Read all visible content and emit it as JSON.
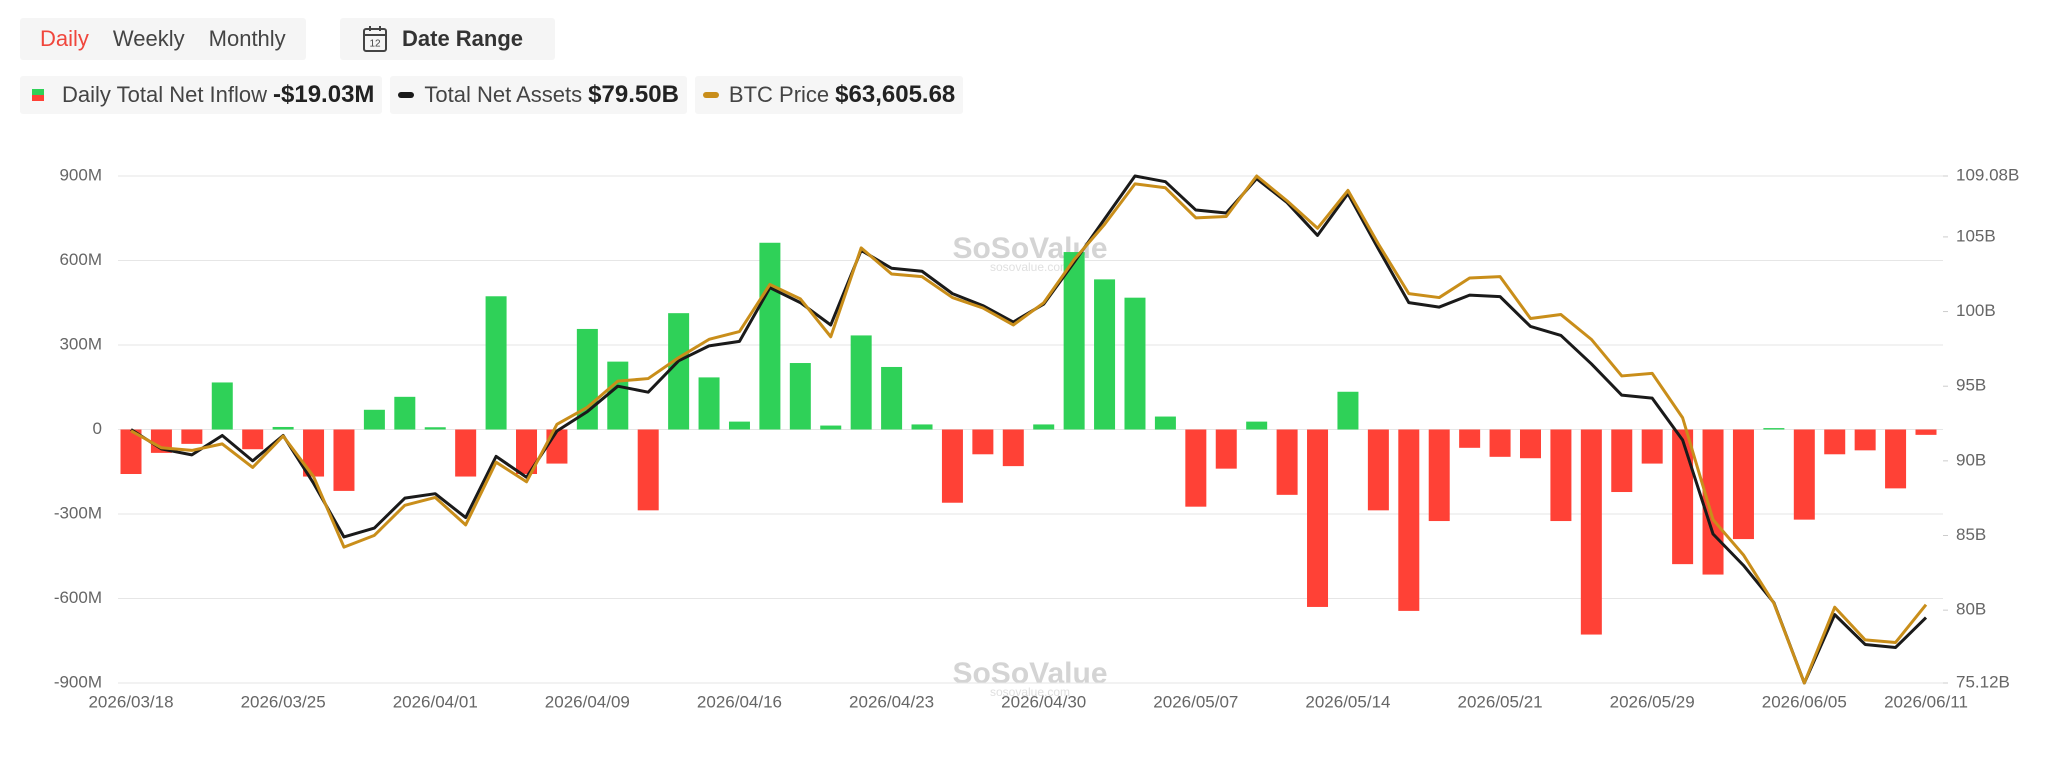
{
  "controls": {
    "tabs": [
      "Daily",
      "Weekly",
      "Monthly"
    ],
    "date_icon": "12",
    "date_range": "Date Range"
  },
  "chart_data": {
    "type": "bar",
    "watermark": "SoSoValue",
    "watermark_sub": "sosovalue.com",
    "categories": [
      "2026/03/18",
      null,
      null,
      null,
      null,
      "2026/03/25",
      null,
      null,
      null,
      null,
      "2026/04/01",
      null,
      null,
      null,
      null,
      "2026/04/09",
      null,
      null,
      null,
      null,
      "2026/04/16",
      null,
      null,
      null,
      null,
      "2026/04/23",
      null,
      null,
      null,
      null,
      "2026/04/30",
      null,
      null,
      null,
      null,
      "2026/05/07",
      null,
      null,
      null,
      null,
      "2026/05/14",
      null,
      null,
      null,
      null,
      "2026/05/21",
      null,
      null,
      null,
      null,
      "2026/05/29",
      null,
      null,
      null,
      null,
      "2026/06/05",
      null,
      null,
      null,
      "2026/06/11"
    ],
    "ylim": [
      -900,
      900
    ],
    "yticks": [
      {
        "value": 900,
        "label": "900M"
      },
      {
        "value": 600,
        "label": "600M"
      },
      {
        "value": 300,
        "label": "300M"
      },
      0,
      {
        "value": -300,
        "label": "-300M"
      },
      {
        "value": -600,
        "label": "-600M"
      },
      {
        "value": -900,
        "label": "-900M"
      }
    ],
    "y2lim": [
      75.12,
      109.08
    ],
    "y2ticks": [
      {
        "value": 109.08,
        "label": "109.08B"
      },
      {
        "value": 105,
        "label": "105B"
      },
      {
        "value": 100,
        "label": "100B"
      },
      {
        "value": 95,
        "label": "95B"
      },
      {
        "value": 90,
        "label": "90B"
      },
      {
        "value": 85,
        "label": "85B"
      },
      {
        "value": 80,
        "label": "80B"
      },
      {
        "value": 75.12,
        "label": "75.12B"
      }
    ],
    "grid": true,
    "series": [
      {
        "name": "Daily Total Net Inflow",
        "legend_value": "-$19.03M",
        "type": "bar",
        "axis": "y",
        "positive_color": "#2fd158",
        "negative_color": "#ff4136",
        "values": [
          -158,
          -83,
          -51,
          167,
          -70,
          9,
          -167,
          -218,
          70,
          116,
          8,
          -167,
          473,
          -158,
          -121,
          357,
          241,
          -287,
          413,
          185,
          28,
          663,
          236,
          14,
          334,
          222,
          18,
          -260,
          -88,
          -130,
          18,
          630,
          533,
          468,
          46,
          -274,
          -139,
          28,
          -232,
          -630,
          134,
          -287,
          -644,
          -325,
          -65,
          -97,
          -102,
          -325,
          -728,
          -222,
          -121,
          -478,
          -515,
          -389,
          5,
          -320,
          -88,
          -74,
          -209,
          -19.03
        ]
      },
      {
        "name": "Total Net Assets",
        "legend_value": "$79.50B",
        "type": "line",
        "axis": "y2",
        "color": "#1a1a1a",
        "values": [
          92.1,
          90.8,
          90.4,
          91.7,
          90.0,
          91.7,
          88.5,
          84.9,
          85.5,
          87.5,
          87.8,
          86.2,
          90.3,
          88.9,
          92.0,
          93.3,
          95.0,
          94.6,
          96.7,
          97.7,
          98.0,
          101.6,
          100.6,
          99.1,
          104.1,
          102.9,
          102.7,
          101.2,
          100.4,
          99.3,
          100.5,
          103.3,
          106.2,
          109.08,
          108.7,
          106.8,
          106.6,
          108.9,
          107.3,
          105.1,
          107.9,
          104.2,
          100.6,
          100.3,
          101.1,
          101.0,
          99.0,
          98.4,
          96.5,
          94.4,
          94.2,
          91.4,
          85.1,
          83.0,
          80.5,
          75.12,
          79.7,
          77.7,
          77.5,
          79.5
        ]
      },
      {
        "name": "BTC Price",
        "legend_value": "$63,605.68",
        "type": "line",
        "color": "#c98e1a",
        "values": [
          73093,
          72166,
          72023,
          72380,
          71096,
          72808,
          70597,
          66746,
          67388,
          69028,
          69456,
          67959,
          71381,
          70312,
          73449,
          74376,
          75803,
          75945,
          77086,
          78085,
          78512,
          81080,
          80295,
          78227,
          83076,
          81650,
          81507,
          80366,
          79796,
          78869,
          80081,
          82434,
          84360,
          86570,
          86356,
          84716,
          84788,
          87000,
          85643,
          84146,
          86214,
          83290,
          80580,
          80366,
          81436,
          81507,
          79225,
          79439,
          78085,
          76088,
          76230,
          73806,
          68244,
          66318,
          63680,
          59330,
          63466,
          61683,
          61541,
          63605.68
        ]
      }
    ]
  }
}
